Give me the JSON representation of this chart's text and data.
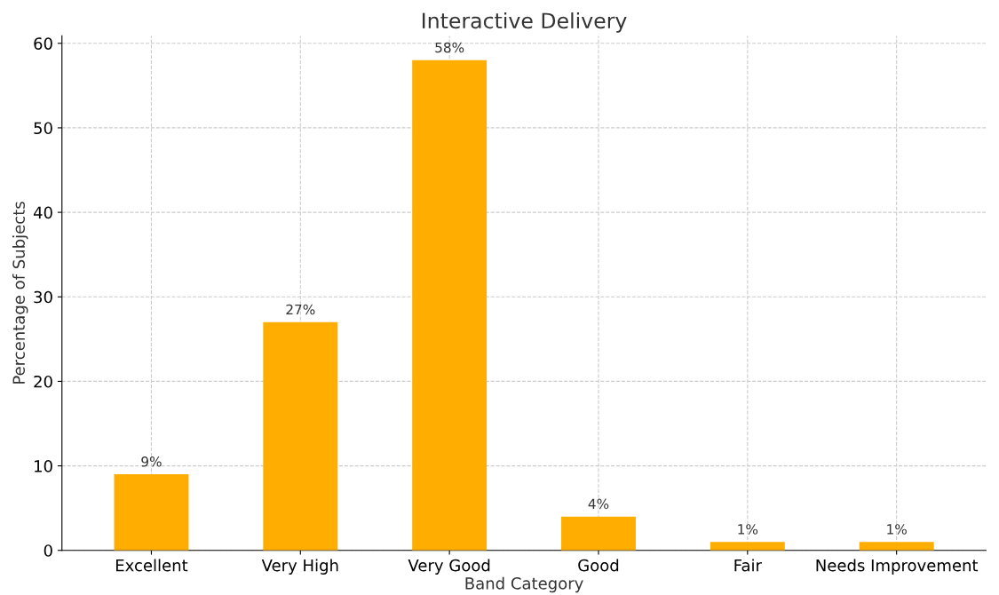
{
  "chart_data": {
    "type": "bar",
    "title": "Interactive Delivery",
    "xlabel": "Band Category",
    "ylabel": "Percentage of Subjects",
    "categories": [
      "Excellent",
      "Very High",
      "Very Good",
      "Good",
      "Fair",
      "Needs Improvement"
    ],
    "values": [
      9,
      27,
      58,
      4,
      1,
      1
    ],
    "value_labels": [
      "9%",
      "27%",
      "58%",
      "4%",
      "1%",
      "1%"
    ],
    "color": "#ffae00",
    "ylim": [
      0,
      60.9
    ],
    "yticks": [
      0,
      10,
      20,
      30,
      40,
      50,
      60
    ],
    "grid": true
  }
}
